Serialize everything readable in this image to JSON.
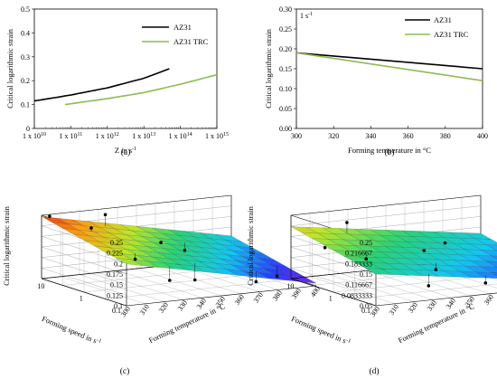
{
  "chart_data": [
    {
      "type": "line",
      "panel_label": "(a)",
      "xlabel": "Z in s⁻¹",
      "ylabel": "Critical logarithmic strain",
      "xscale": "log",
      "xlim": [
        10000000000.0,
        1000000000000000.0
      ],
      "ylim": [
        0,
        0.5
      ],
      "x_ticks": [
        10,
        11,
        12,
        13,
        14,
        15
      ],
      "x_tick_base": "1 x 10",
      "y_ticks": [
        "0",
        "0.1",
        "0.2",
        "0.3",
        "0.4",
        "0.5"
      ],
      "legend_position": "top-right",
      "series": [
        {
          "name": "AZ31",
          "color": "#000000",
          "x": [
            10000000000.0,
            100000000000.0,
            1000000000000.0,
            10000000000000.0,
            50000000000000.0
          ],
          "y": [
            0.115,
            0.14,
            0.17,
            0.21,
            0.25
          ]
        },
        {
          "name": "AZ31 TRC",
          "color": "#8dbb52",
          "x": [
            70000000000.0,
            1000000000000.0,
            10000000000000.0,
            100000000000000.0,
            1000000000000000.0
          ],
          "y": [
            0.1,
            0.125,
            0.15,
            0.185,
            0.225
          ]
        }
      ]
    },
    {
      "type": "line",
      "panel_label": "(b)",
      "annotation": "1 s⁻¹",
      "xlabel": "Forming temperature in °C",
      "ylabel": "Critical logarithmic strain",
      "xlim": [
        300,
        400
      ],
      "ylim": [
        0,
        0.3
      ],
      "x_ticks": [
        "300",
        "320",
        "340",
        "360",
        "380",
        "400"
      ],
      "y_ticks": [
        "0.00",
        "0.05",
        "0.10",
        "0.15",
        "0.20",
        "0.25",
        "0.30"
      ],
      "legend_position": "top-right",
      "series": [
        {
          "name": "AZ31",
          "color": "#000000",
          "x": [
            300,
            400
          ],
          "y": [
            0.19,
            0.15
          ]
        },
        {
          "name": "AZ31 TRC",
          "color": "#8dbb52",
          "x": [
            300,
            400
          ],
          "y": [
            0.19,
            0.12
          ]
        }
      ]
    },
    {
      "type": "surface",
      "panel_label": "(c)",
      "zlabel": "Critical logarithmic strain",
      "xlabel": "Forming speed in s⁻¹",
      "ylabel": "Forming temperature in °C",
      "zlim": [
        0.1,
        0.25
      ],
      "z_ticks": [
        "0.1",
        "0.125",
        "0.15",
        "0.175",
        "0.2",
        "0.225",
        "0.25"
      ],
      "speed_ticks": [
        "0.1",
        "1",
        "10"
      ],
      "temp_ticks": [
        "300",
        "310",
        "320",
        "330",
        "340",
        "350",
        "360",
        "370",
        "380",
        "390",
        "400"
      ],
      "colormap": "jet"
    },
    {
      "type": "surface",
      "panel_label": "(d)",
      "zlabel": "Critical logarithmic strain",
      "xlabel": "Forming speed in s⁻¹",
      "ylabel": "Forming temperature in °C",
      "zlim": [
        0.05,
        0.25
      ],
      "z_ticks": [
        "0.05",
        "0.0833333",
        "0.116667",
        "0.15",
        "0.183333",
        "0.216667",
        "0.25"
      ],
      "speed_ticks": [
        "0.1",
        "1",
        "10"
      ],
      "temp_ticks": [
        "300",
        "310",
        "320",
        "330",
        "340",
        "350",
        "360",
        "370",
        "380",
        "390",
        "400"
      ],
      "colormap": "jet"
    }
  ]
}
